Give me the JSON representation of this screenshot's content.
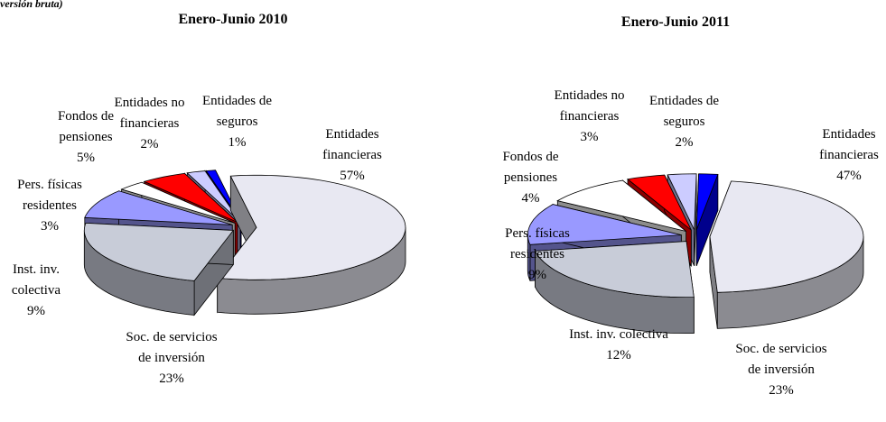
{
  "subtitle": "versión bruta)",
  "chart_data": [
    {
      "type": "pie3d",
      "title": "Enero-Junio 2010",
      "categories": [
        "Entidades financieras",
        "Soc. de servicios de inversión",
        "Inst. inv. colectiva",
        "Pers. físicas residentes",
        "Fondos de pensiones",
        "Entidades no financieras",
        "Entidades de seguros"
      ],
      "values": [
        57,
        23,
        9,
        3,
        5,
        2,
        1
      ],
      "value_labels": [
        "57%",
        "23%",
        "9%",
        "3%",
        "5%",
        "2%",
        "1%"
      ],
      "colors": [
        "#e8e8f2",
        "#c8ccd8",
        "#9999ff",
        "#ffffff",
        "#ff0000",
        "#ccccff",
        "#0000ff"
      ]
    },
    {
      "type": "pie3d",
      "title": "Enero-Junio 2011",
      "categories": [
        "Entidades financieras",
        "Soc. de servicios de inversión",
        "Inst. inv. colectiva",
        "Pers. físicas residentes",
        "Fondos de pensiones",
        "Entidades no financieras",
        "Entidades de seguros"
      ],
      "values": [
        47,
        23,
        12,
        9,
        4,
        3,
        2
      ],
      "value_labels": [
        "47%",
        "23%",
        "12%",
        "9%",
        "4%",
        "3%",
        "2%"
      ],
      "colors": [
        "#e8e8f2",
        "#c8ccd8",
        "#9999ff",
        "#ffffff",
        "#ff0000",
        "#ccccff",
        "#0000ff"
      ]
    }
  ]
}
